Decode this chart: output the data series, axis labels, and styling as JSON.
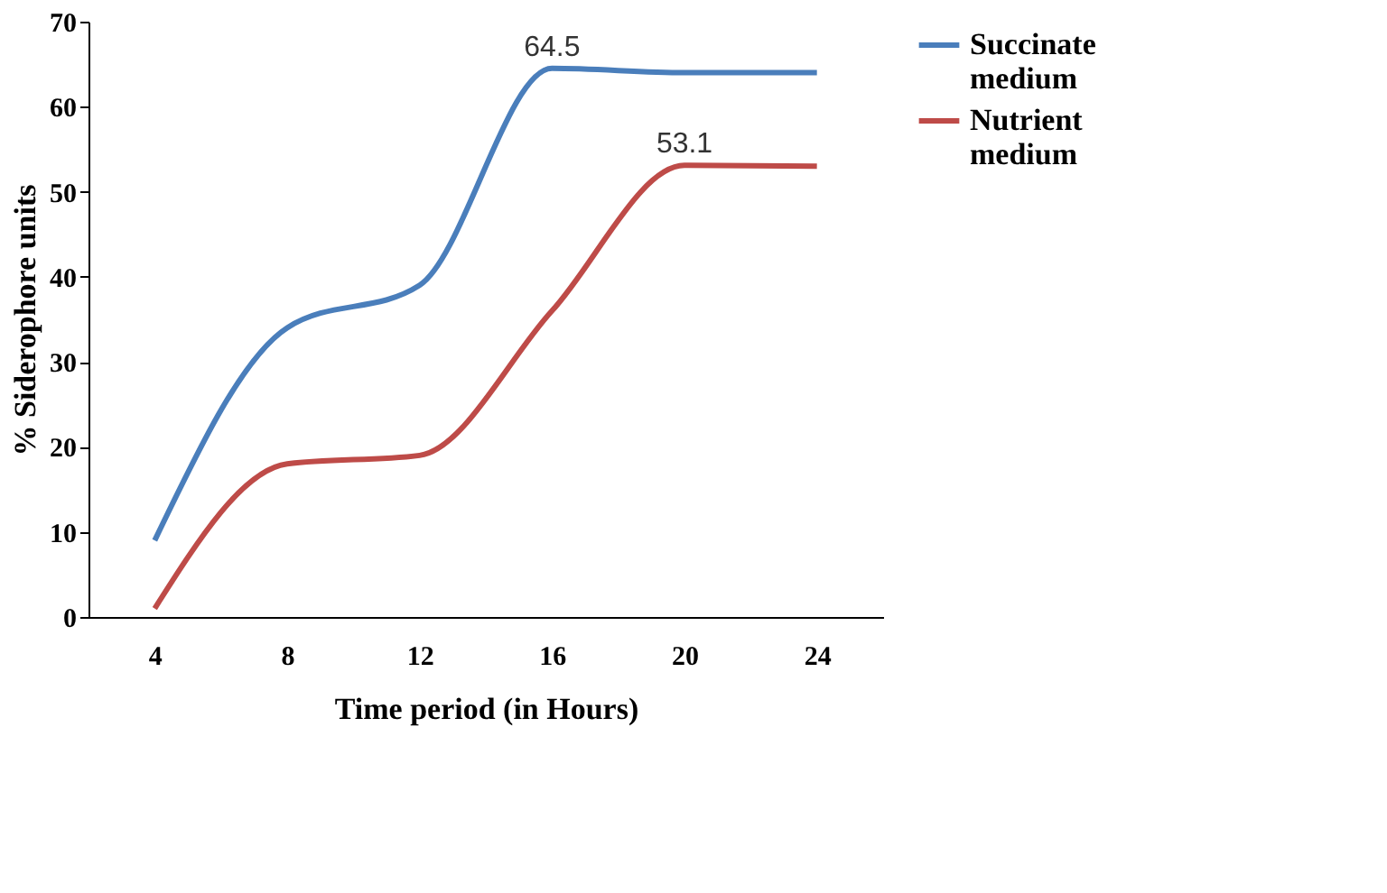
{
  "chart_data": {
    "type": "line",
    "xlabel": "Time period (in Hours)",
    "ylabel": "% Siderophore units",
    "categories": [
      "4",
      "8",
      "12",
      "16",
      "20",
      "24"
    ],
    "series": [
      {
        "name": "Succinate medium",
        "color": "#4a7ebb",
        "values": [
          9,
          34,
          39,
          64.5,
          64,
          64
        ],
        "value_labels": [
          null,
          null,
          null,
          "64.5",
          null,
          null
        ]
      },
      {
        "name": "Nutrient medium",
        "color": "#be4b48",
        "values": [
          1,
          18,
          19,
          36,
          53.1,
          53
        ],
        "value_labels": [
          null,
          null,
          null,
          null,
          "53.1",
          null
        ]
      }
    ],
    "ylim": [
      0,
      70
    ],
    "yticks": [
      0,
      10,
      20,
      30,
      40,
      50,
      60,
      70
    ],
    "grid": false,
    "legend": "right",
    "marker": "none",
    "line_style": "solid"
  }
}
